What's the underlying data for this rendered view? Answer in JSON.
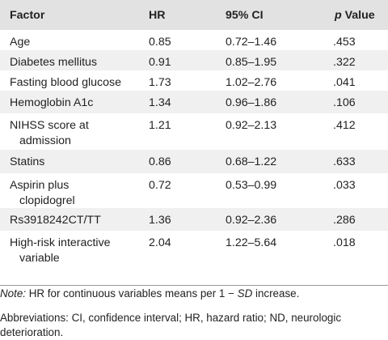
{
  "table": {
    "headers": {
      "factor": "Factor",
      "hr": "HR",
      "ci": "95% CI",
      "p_prefix": "p",
      "p_suffix": " Value"
    },
    "rows": [
      {
        "factor": "Age",
        "factor_line2": "",
        "hr": "0.85",
        "ci": "0.72–1.46",
        "p": ".453"
      },
      {
        "factor": "Diabetes mellitus",
        "factor_line2": "",
        "hr": "0.91",
        "ci": "0.85–1.95",
        "p": ".322"
      },
      {
        "factor": "Fasting blood glucose",
        "factor_line2": "",
        "hr": "1.73",
        "ci": "1.02–2.76",
        "p": ".041"
      },
      {
        "factor": "Hemoglobin A1c",
        "factor_line2": "",
        "hr": "1.34",
        "ci": "0.96–1.86",
        "p": ".106"
      },
      {
        "factor": "NIHSS score at",
        "factor_line2": "admission",
        "hr": "1.21",
        "ci": "0.92–2.13",
        "p": ".412"
      },
      {
        "factor": "Statins",
        "factor_line2": "",
        "hr": "0.86",
        "ci": "0.68–1.22",
        "p": ".633"
      },
      {
        "factor": "Aspirin plus",
        "factor_line2": "clopidogrel",
        "hr": "0.72",
        "ci": "0.53–0.99",
        "p": ".033"
      },
      {
        "factor": "Rs3918242CT/TT",
        "factor_line2": "",
        "hr": "1.36",
        "ci": "0.92–2.36",
        "p": ".286"
      },
      {
        "factor": "High-risk interactive",
        "factor_line2": "variable",
        "hr": "2.04",
        "ci": "1.22–5.64",
        "p": ".018"
      }
    ]
  },
  "notes": {
    "note_label": "Note:",
    "note_text_a": " HR for continuous variables means per 1 − ",
    "note_sd": "SD",
    "note_text_b": " increase.",
    "abbrev_line1": "Abbreviations: CI, confidence interval; HR, hazard ratio; ND, neurologic",
    "abbrev_line2": "deterioration."
  }
}
